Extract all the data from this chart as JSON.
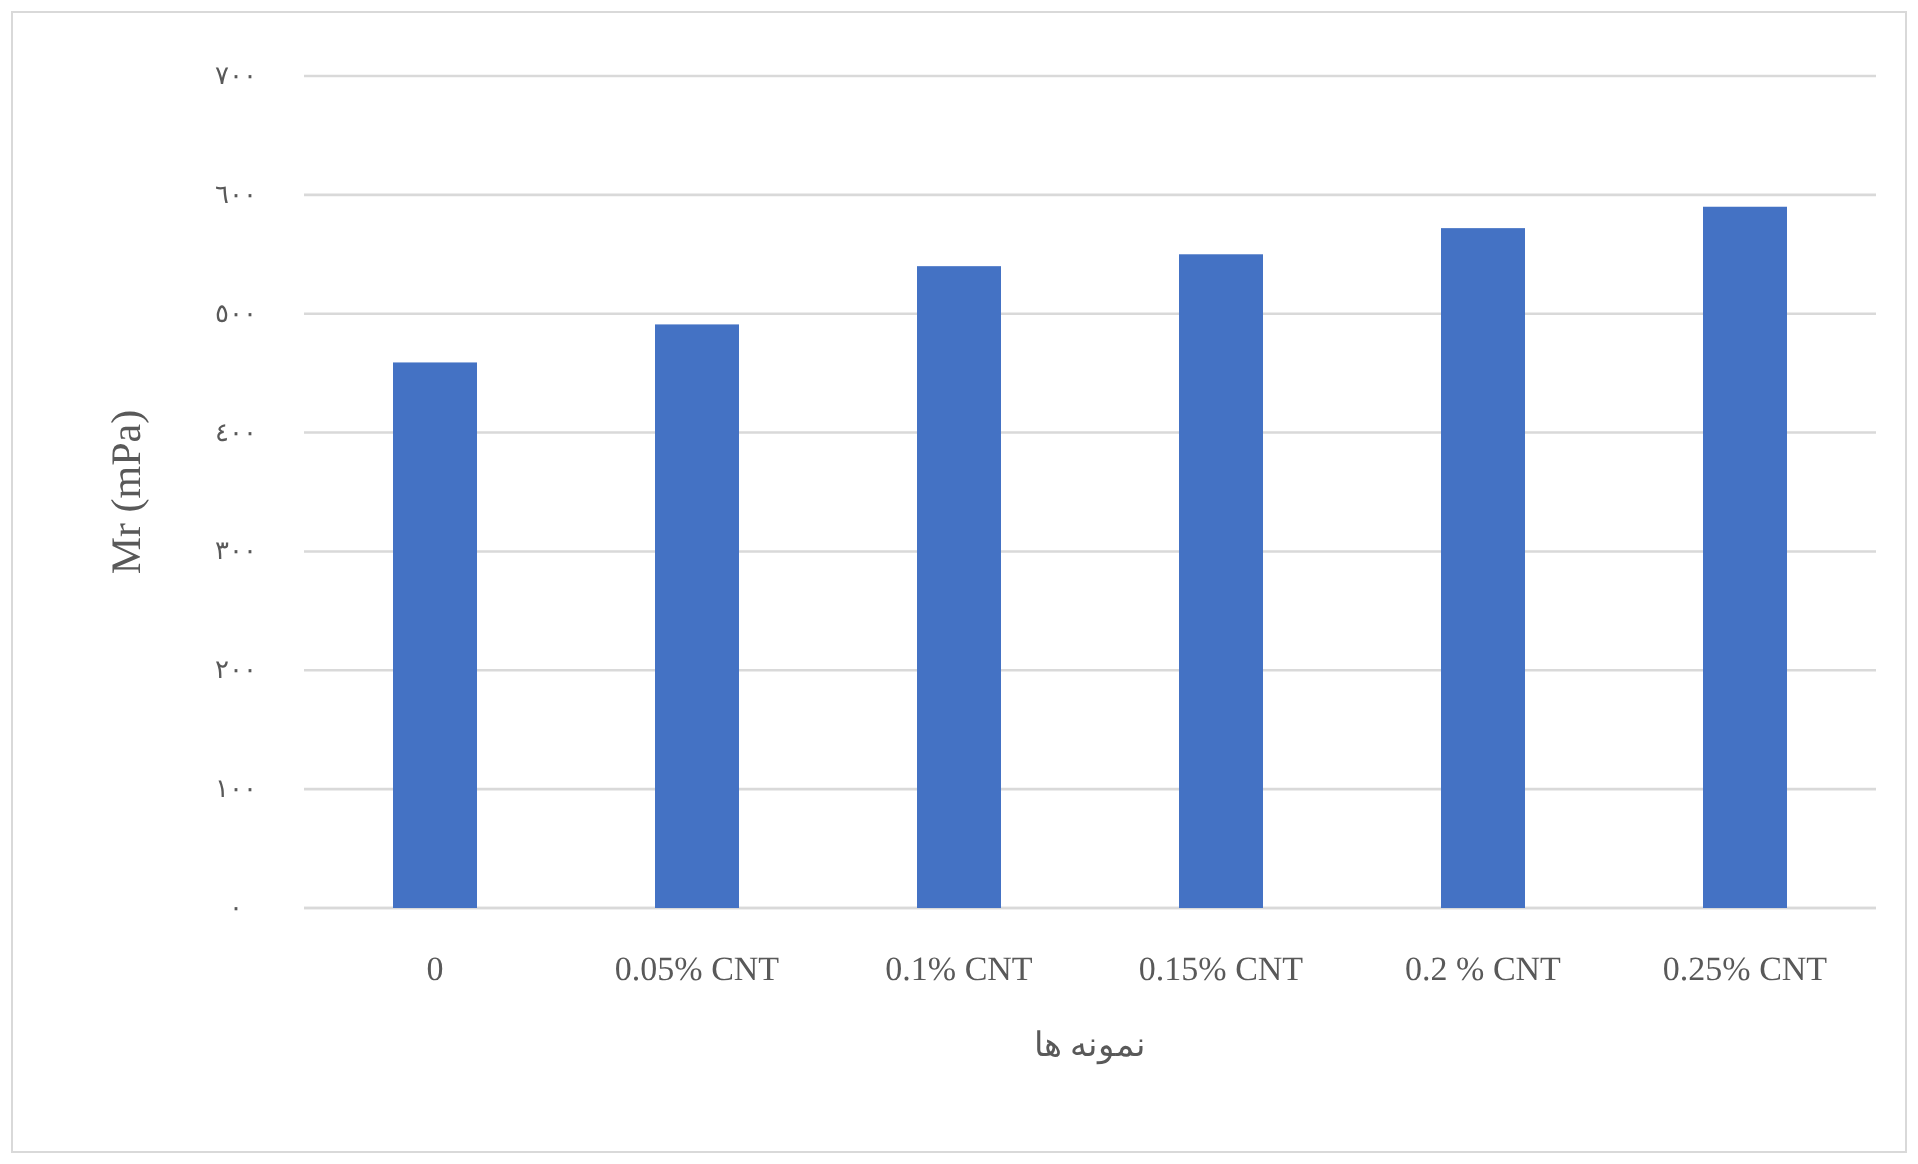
{
  "chart_data": {
    "type": "bar",
    "xlabel": "نمونه ها",
    "ylabel": "Mr (mPa)",
    "categories": [
      "0",
      "0.05% CNT",
      "0.1% CNT",
      "0.15% CNT",
      "0.2 % CNT",
      "0.25% CNT"
    ],
    "values": [
      459,
      491,
      540,
      550,
      572,
      590
    ],
    "color": "#4472c4",
    "ylim": [
      0,
      700
    ],
    "yticks": [
      {
        "value": 0,
        "label": "٠"
      },
      {
        "value": 100,
        "label": "١٠٠"
      },
      {
        "value": 200,
        "label": "٢٠٠"
      },
      {
        "value": 300,
        "label": "٣٠٠"
      },
      {
        "value": 400,
        "label": "٤٠٠"
      },
      {
        "value": 500,
        "label": "٥٠٠"
      },
      {
        "value": 600,
        "label": "٦٠٠"
      },
      {
        "value": 700,
        "label": "٧٠٠"
      }
    ],
    "grid": "y"
  }
}
